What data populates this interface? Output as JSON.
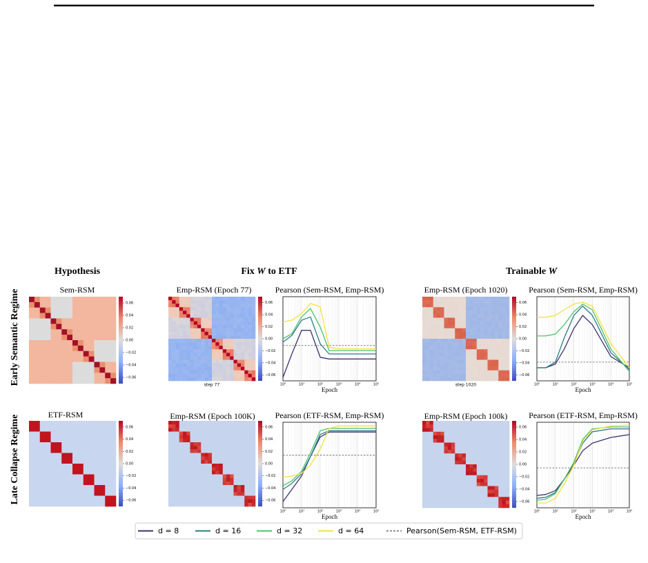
{
  "columns": [
    {
      "title": "Hypothesis"
    },
    {
      "prefix": "Fix ",
      "var": "W",
      "suffix": " to ETF"
    },
    {
      "prefix": "Trainable ",
      "var": "W"
    }
  ],
  "rows": [
    "Early Semantic Regime",
    "Late Collapse Regime"
  ],
  "panels": [
    {
      "title": "Sem-RSM"
    },
    {
      "title": "Emp-RSM (Epoch 77)",
      "caption": "step 77"
    },
    {
      "title": "Emp-RSM (Epoch 1020)",
      "caption": "step 1020"
    },
    {
      "title": "ETF-RSM"
    },
    {
      "title": "Emp-RSM (Epoch 100K)"
    },
    {
      "title": "Emp-RSM (Epoch 100k)"
    }
  ],
  "colorbar_lim": [
    -0.07,
    0.07
  ],
  "colorbar_ticks": [
    0.06,
    0.04,
    0.02,
    {
      "value": 0,
      "label": "0.00"
    },
    {
      "value": -0.02,
      "label": "−0.02"
    },
    {
      "value": -0.04,
      "label": "−0.04"
    },
    {
      "value": -0.06,
      "label": "−0.06"
    }
  ],
  "legend": {
    "reference_label": "Pearson(Sem-RSM, ETF-RSM)"
  },
  "chart_data": [
    {
      "type": "line",
      "title": "Pearson (Sem-RSM, Emp-RSM)",
      "xlabel": "Epoch",
      "log_x": true,
      "x": [
        1,
        3,
        10,
        30,
        100,
        300,
        1000,
        10000,
        100000
      ],
      "xlim": [
        1,
        100000
      ],
      "xticks": [
        {
          "value": 1,
          "label": "10⁰"
        },
        {
          "value": 10,
          "label": "10¹"
        },
        {
          "value": 100,
          "label": "10²"
        },
        {
          "value": 1000,
          "label": "10³"
        },
        {
          "value": 10000,
          "label": "10⁴"
        },
        {
          "value": 100000,
          "label": "10⁵"
        }
      ],
      "ylim": [
        0.5,
        1.0
      ],
      "reference": 0.71,
      "series": [
        {
          "name": "d = 8",
          "color": "#3b2f6e",
          "values": [
            0.52,
            0.66,
            0.8,
            0.8,
            0.64,
            0.63,
            0.63,
            0.63,
            0.63
          ]
        },
        {
          "name": "d = 16",
          "color": "#2a7b8a",
          "values": [
            0.73,
            0.77,
            0.86,
            0.88,
            0.72,
            0.66,
            0.66,
            0.66,
            0.66
          ]
        },
        {
          "name": "d = 32",
          "color": "#4cc26a",
          "values": [
            0.75,
            0.78,
            0.88,
            0.93,
            0.82,
            0.68,
            0.68,
            0.68,
            0.68
          ]
        },
        {
          "name": "d = 64",
          "color": "#f2e33a",
          "values": [
            0.85,
            0.86,
            0.9,
            0.96,
            0.94,
            0.7,
            0.69,
            0.69,
            0.69
          ]
        }
      ]
    },
    {
      "type": "line",
      "title": "Pearson (Sem-RSM, Emp-RSM)",
      "xlabel": "Epoch",
      "log_x": true,
      "x": [
        1,
        3,
        10,
        30,
        100,
        300,
        1000,
        10000,
        100000
      ],
      "xlim": [
        1,
        100000
      ],
      "xticks": [
        {
          "value": 1,
          "label": "10⁰"
        },
        {
          "value": 10,
          "label": "10¹"
        },
        {
          "value": 100,
          "label": "10²"
        },
        {
          "value": 1000,
          "label": "10³"
        },
        {
          "value": 10000,
          "label": "10⁴"
        },
        {
          "value": 100000,
          "label": "10⁵"
        }
      ],
      "ylim": [
        0.55,
        1.0
      ],
      "reference": 0.65,
      "series": [
        {
          "name": "d = 8",
          "color": "#3b2f6e",
          "values": [
            0.62,
            0.62,
            0.64,
            0.72,
            0.83,
            0.9,
            0.85,
            0.68,
            0.62
          ]
        },
        {
          "name": "d = 16",
          "color": "#2a7b8a",
          "values": [
            0.62,
            0.62,
            0.65,
            0.78,
            0.9,
            0.95,
            0.9,
            0.7,
            0.61
          ]
        },
        {
          "name": "d = 32",
          "color": "#4cc26a",
          "values": [
            0.79,
            0.79,
            0.8,
            0.85,
            0.92,
            0.96,
            0.93,
            0.72,
            0.6
          ]
        },
        {
          "name": "d = 64",
          "color": "#f2e33a",
          "values": [
            0.89,
            0.89,
            0.9,
            0.93,
            0.96,
            0.97,
            0.95,
            0.75,
            0.62
          ]
        }
      ]
    },
    {
      "type": "line",
      "title": "Pearson (ETF-RSM, Emp-RSM)",
      "xlabel": "Epoch",
      "log_x": true,
      "x": [
        1,
        3,
        10,
        30,
        100,
        300,
        1000,
        10000,
        100000
      ],
      "xlim": [
        1,
        100000
      ],
      "xticks": [
        {
          "value": 1,
          "label": "10⁰"
        },
        {
          "value": 10,
          "label": "10¹"
        },
        {
          "value": 100,
          "label": "10²"
        },
        {
          "value": 1000,
          "label": "10³"
        },
        {
          "value": 10000,
          "label": "10⁴"
        },
        {
          "value": 100000,
          "label": "10⁵"
        }
      ],
      "ylim": [
        0.3,
        1.0
      ],
      "reference": 0.73,
      "series": [
        {
          "name": "d = 8",
          "color": "#3b2f6e",
          "values": [
            0.35,
            0.45,
            0.56,
            0.72,
            0.88,
            0.92,
            0.92,
            0.92,
            0.92
          ]
        },
        {
          "name": "d = 16",
          "color": "#2a7b8a",
          "values": [
            0.45,
            0.5,
            0.58,
            0.72,
            0.9,
            0.93,
            0.93,
            0.93,
            0.93
          ]
        },
        {
          "name": "d = 32",
          "color": "#4cc26a",
          "values": [
            0.48,
            0.52,
            0.6,
            0.75,
            0.93,
            0.95,
            0.95,
            0.95,
            0.95
          ]
        },
        {
          "name": "d = 64",
          "color": "#f2e33a",
          "values": [
            0.55,
            0.56,
            0.58,
            0.65,
            0.78,
            0.95,
            0.97,
            0.97,
            0.97
          ]
        }
      ]
    },
    {
      "type": "line",
      "title": "Pearson (ETF-RSM, Emp-RSM)",
      "xlabel": "Epoch",
      "log_x": true,
      "x": [
        1,
        3,
        10,
        30,
        100,
        300,
        1000,
        10000,
        100000
      ],
      "xlim": [
        1,
        100000
      ],
      "xticks": [
        {
          "value": 1,
          "label": "10⁰"
        },
        {
          "value": 10,
          "label": "10¹"
        },
        {
          "value": 100,
          "label": "10²"
        },
        {
          "value": 1000,
          "label": "10³"
        },
        {
          "value": 10000,
          "label": "10⁴"
        },
        {
          "value": 100000,
          "label": "10⁵"
        }
      ],
      "ylim": [
        0.1,
        1.0
      ],
      "reference": 0.52,
      "series": [
        {
          "name": "d = 8",
          "color": "#3b2f6e",
          "values": [
            0.23,
            0.24,
            0.28,
            0.4,
            0.55,
            0.7,
            0.78,
            0.84,
            0.87
          ]
        },
        {
          "name": "d = 16",
          "color": "#2a7b8a",
          "values": [
            0.2,
            0.21,
            0.26,
            0.4,
            0.57,
            0.78,
            0.9,
            0.93,
            0.93
          ]
        },
        {
          "name": "d = 32",
          "color": "#4cc26a",
          "values": [
            0.18,
            0.19,
            0.25,
            0.4,
            0.58,
            0.82,
            0.93,
            0.95,
            0.95
          ]
        },
        {
          "name": "d = 64",
          "color": "#f2e33a",
          "values": [
            0.15,
            0.15,
            0.2,
            0.35,
            0.55,
            0.8,
            0.92,
            0.96,
            0.97
          ]
        }
      ]
    }
  ]
}
